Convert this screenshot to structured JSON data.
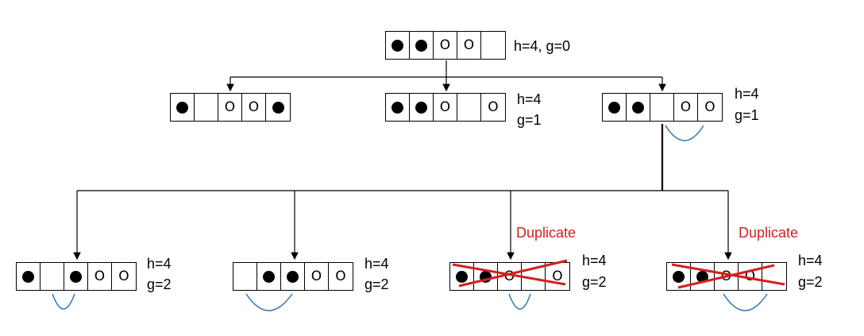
{
  "colors": {
    "line": "#000000",
    "swap_arc": "#2e75b6",
    "duplicate": "#d42020"
  },
  "nodes": {
    "root": {
      "cells": [
        "black",
        "black",
        "O",
        "O",
        "empty"
      ],
      "h_label": "h=4, g=0"
    },
    "l1_a": {
      "cells": [
        "black",
        "empty",
        "O",
        "O",
        "black"
      ]
    },
    "l1_b": {
      "cells": [
        "black",
        "black",
        "O",
        "empty",
        "O"
      ],
      "h_label": "h=4",
      "g_label": "g=1"
    },
    "l1_c": {
      "cells": [
        "black",
        "black",
        "empty",
        "O",
        "O"
      ],
      "h_label": "h=4",
      "g_label": "g=1"
    },
    "l2_a": {
      "cells": [
        "black",
        "empty",
        "black",
        "O",
        "O"
      ],
      "h_label": "h=4",
      "g_label": "g=2"
    },
    "l2_b": {
      "cells": [
        "empty",
        "black",
        "black",
        "O",
        "O"
      ],
      "h_label": "h=4",
      "g_label": "g=2"
    },
    "l2_c": {
      "cells": [
        "black",
        "black",
        "O",
        "empty",
        "O"
      ],
      "h_label": "h=4",
      "g_label": "g=2",
      "tag": "Duplicate"
    },
    "l2_d": {
      "cells": [
        "black",
        "black",
        "O",
        "O",
        "empty"
      ],
      "h_label": "h=4",
      "g_label": "g=2",
      "tag": "Duplicate"
    }
  }
}
